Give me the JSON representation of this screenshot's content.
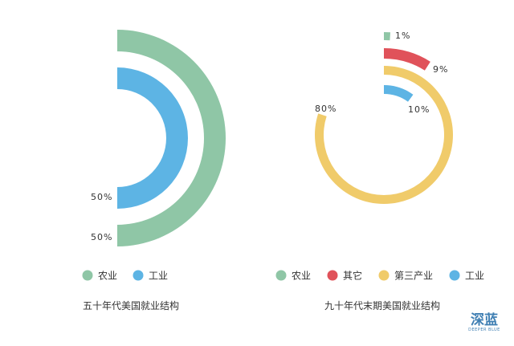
{
  "chart_data": [
    {
      "type": "radial-bar",
      "caption": "五十年代美国就业结构",
      "series": [
        {
          "name": "农业",
          "value": 50,
          "label": "50%",
          "color": "#8fc6a6"
        },
        {
          "name": "工业",
          "value": 50,
          "label": "50%",
          "color": "#5db4e4"
        }
      ]
    },
    {
      "type": "radial-bar",
      "caption": "九十年代末期美国就业结构",
      "series": [
        {
          "name": "农业",
          "value": 1,
          "label": "1%",
          "color": "#8fc6a6"
        },
        {
          "name": "其它",
          "value": 9,
          "label": "9%",
          "color": "#e0525a"
        },
        {
          "name": "第三产业",
          "value": 80,
          "label": "80%",
          "color": "#f0cb6a"
        },
        {
          "name": "工业",
          "value": 10,
          "label": "10%",
          "color": "#5db4e4"
        }
      ]
    }
  ],
  "watermark": {
    "cn": "深蓝",
    "en": "DEEPER BLUE"
  }
}
